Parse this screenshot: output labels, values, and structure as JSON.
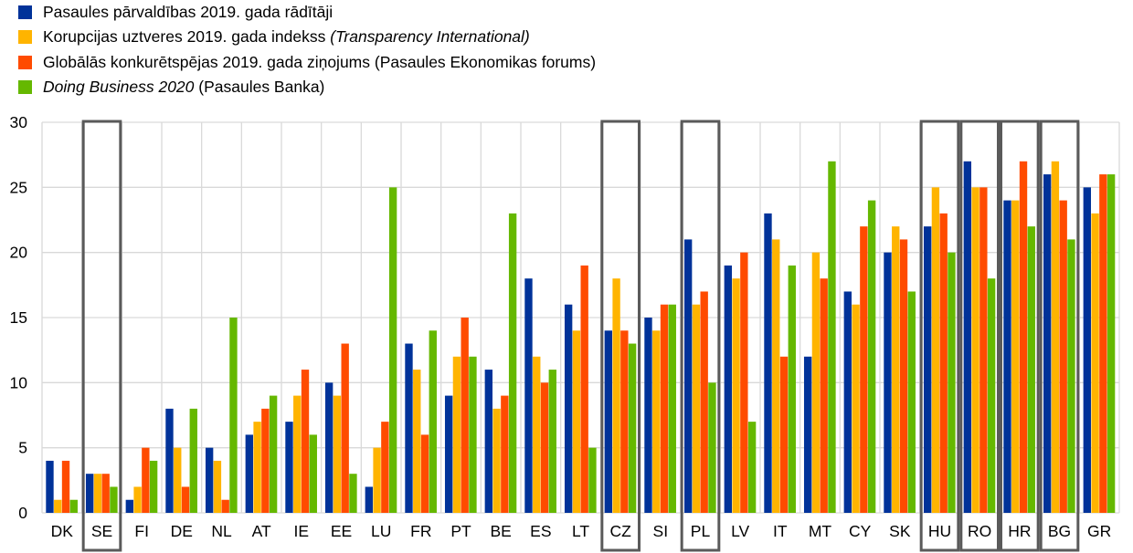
{
  "chart_data": {
    "type": "bar",
    "title": "",
    "xlabel": "",
    "ylabel": "",
    "ylim": [
      0,
      30
    ],
    "yticks": [
      0,
      5,
      10,
      15,
      20,
      25,
      30
    ],
    "grid": true,
    "legend_position": "top-left",
    "categories": [
      "DK",
      "SE",
      "FI",
      "DE",
      "NL",
      "AT",
      "IE",
      "EE",
      "LU",
      "FR",
      "PT",
      "BE",
      "ES",
      "LT",
      "CZ",
      "SI",
      "PL",
      "LV",
      "IT",
      "MT",
      "CY",
      "SK",
      "HU",
      "RO",
      "HR",
      "BG",
      "GR"
    ],
    "highlighted": [
      "SE",
      "CZ",
      "PL",
      "HU",
      "RO",
      "HR",
      "BG"
    ],
    "series": [
      {
        "name": "Pasaules pārvaldības 2019. gada rādītāji",
        "color": "#003299",
        "legend_parts": [
          {
            "text": "Pasaules pārvaldības 2019. gada rādītāji",
            "italic": false
          }
        ],
        "values": [
          4,
          3,
          1,
          8,
          5,
          6,
          7,
          10,
          2,
          13,
          9,
          11,
          18,
          16,
          14,
          15,
          21,
          19,
          23,
          12,
          17,
          20,
          22,
          27,
          24,
          26,
          25
        ]
      },
      {
        "name": "Korupcijas uztveres 2019. gada indekss (Transparency International)",
        "color": "#FFB400",
        "legend_parts": [
          {
            "text": "Korupcijas uztveres 2019. gada indekss ",
            "italic": false
          },
          {
            "text": "(Transparency International)",
            "italic": true
          }
        ],
        "values": [
          1,
          3,
          2,
          5,
          4,
          7,
          9,
          9,
          5,
          11,
          12,
          8,
          12,
          14,
          18,
          14,
          16,
          18,
          21,
          20,
          16,
          22,
          25,
          25,
          24,
          27,
          23
        ]
      },
      {
        "name": "Globālās konkurētspējas 2019. gada ziņojums (Pasaules Ekonomikas forums)",
        "color": "#FF4B00",
        "legend_parts": [
          {
            "text": "Globālās konkurētspējas 2019. gada ziņojums (Pasaules Ekonomikas forums)",
            "italic": false
          }
        ],
        "values": [
          4,
          3,
          5,
          2,
          1,
          8,
          11,
          13,
          7,
          6,
          15,
          9,
          10,
          19,
          14,
          16,
          17,
          20,
          12,
          18,
          22,
          21,
          23,
          25,
          27,
          24,
          26
        ]
      },
      {
        "name": "Doing Business 2020 (Pasaules Banka)",
        "color": "#65B800",
        "legend_parts": [
          {
            "text": "Doing Business 2020",
            "italic": true
          },
          {
            "text": " (Pasaules Banka)",
            "italic": false
          }
        ],
        "values": [
          1,
          2,
          4,
          8,
          15,
          9,
          6,
          3,
          25,
          14,
          12,
          23,
          11,
          5,
          13,
          16,
          10,
          7,
          19,
          27,
          24,
          17,
          20,
          18,
          22,
          21,
          26
        ]
      }
    ]
  }
}
